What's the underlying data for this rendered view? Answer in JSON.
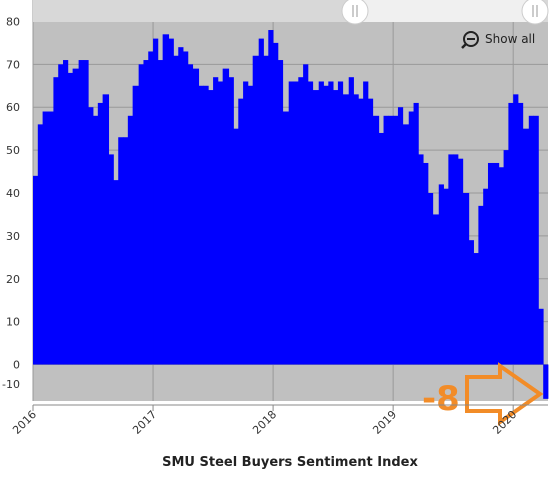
{
  "chart_data": {
    "type": "step-area",
    "title": "SMU Steel Buyers Sentiment Index",
    "button": "Show all",
    "annotation": "-8",
    "x": [
      2016.0,
      2016.04,
      2016.08,
      2016.13,
      2016.17,
      2016.21,
      2016.25,
      2016.29,
      2016.33,
      2016.38,
      2016.42,
      2016.46,
      2016.5,
      2016.54,
      2016.58,
      2016.63,
      2016.67,
      2016.71,
      2016.75,
      2016.79,
      2016.83,
      2016.88,
      2016.92,
      2016.96,
      2017.0,
      2017.04,
      2017.08,
      2017.13,
      2017.17,
      2017.21,
      2017.25,
      2017.29,
      2017.33,
      2017.38,
      2017.42,
      2017.46,
      2017.5,
      2017.54,
      2017.58,
      2017.63,
      2017.67,
      2017.71,
      2017.75,
      2017.79,
      2017.83,
      2017.88,
      2017.92,
      2017.96,
      2018.0,
      2018.04,
      2018.08,
      2018.13,
      2018.17,
      2018.21,
      2018.25,
      2018.29,
      2018.33,
      2018.38,
      2018.42,
      2018.46,
      2018.5,
      2018.54,
      2018.58,
      2018.63,
      2018.67,
      2018.71,
      2018.75,
      2018.79,
      2018.83,
      2018.88,
      2018.92,
      2018.96,
      2019.0,
      2019.04,
      2019.08,
      2019.13,
      2019.17,
      2019.21,
      2019.25,
      2019.29,
      2019.33,
      2019.38,
      2019.42,
      2019.46,
      2019.5,
      2019.54,
      2019.58,
      2019.63,
      2019.67,
      2019.71,
      2019.75,
      2019.79,
      2019.83,
      2019.88,
      2019.92,
      2019.96,
      2020.0,
      2020.04,
      2020.08,
      2020.13,
      2020.17,
      2020.21,
      2020.25
    ],
    "values": [
      44,
      56,
      59,
      59,
      67,
      70,
      71,
      68,
      69,
      71,
      71,
      60,
      58,
      61,
      63,
      49,
      43,
      53,
      53,
      58,
      65,
      70,
      71,
      73,
      76,
      71,
      77,
      76,
      72,
      74,
      73,
      70,
      69,
      65,
      65,
      64,
      67,
      66,
      69,
      67,
      55,
      62,
      66,
      65,
      72,
      76,
      72,
      78,
      75,
      71,
      59,
      66,
      66,
      67,
      70,
      66,
      64,
      66,
      65,
      66,
      64,
      66,
      63,
      67,
      63,
      62,
      66,
      62,
      58,
      54,
      58,
      58,
      58,
      60,
      56,
      59,
      61,
      49,
      47,
      40,
      35,
      42,
      41,
      49,
      49,
      48,
      40,
      29,
      26,
      37,
      41,
      47,
      47,
      46,
      50,
      61,
      63,
      61,
      55,
      58,
      58,
      13,
      -8
    ],
    "color": "#0000ff",
    "background": "#c0c0c0",
    "xlim": [
      2016.0,
      2020.29
    ],
    "xticks": [
      2016,
      2017,
      2018,
      2019,
      2020
    ],
    "ylim": [
      -8.5,
      85
    ],
    "yticks": [
      -10,
      0,
      10,
      20,
      30,
      40,
      50,
      60,
      70,
      80
    ],
    "grid": true,
    "annotation_color": "#f28c28"
  }
}
